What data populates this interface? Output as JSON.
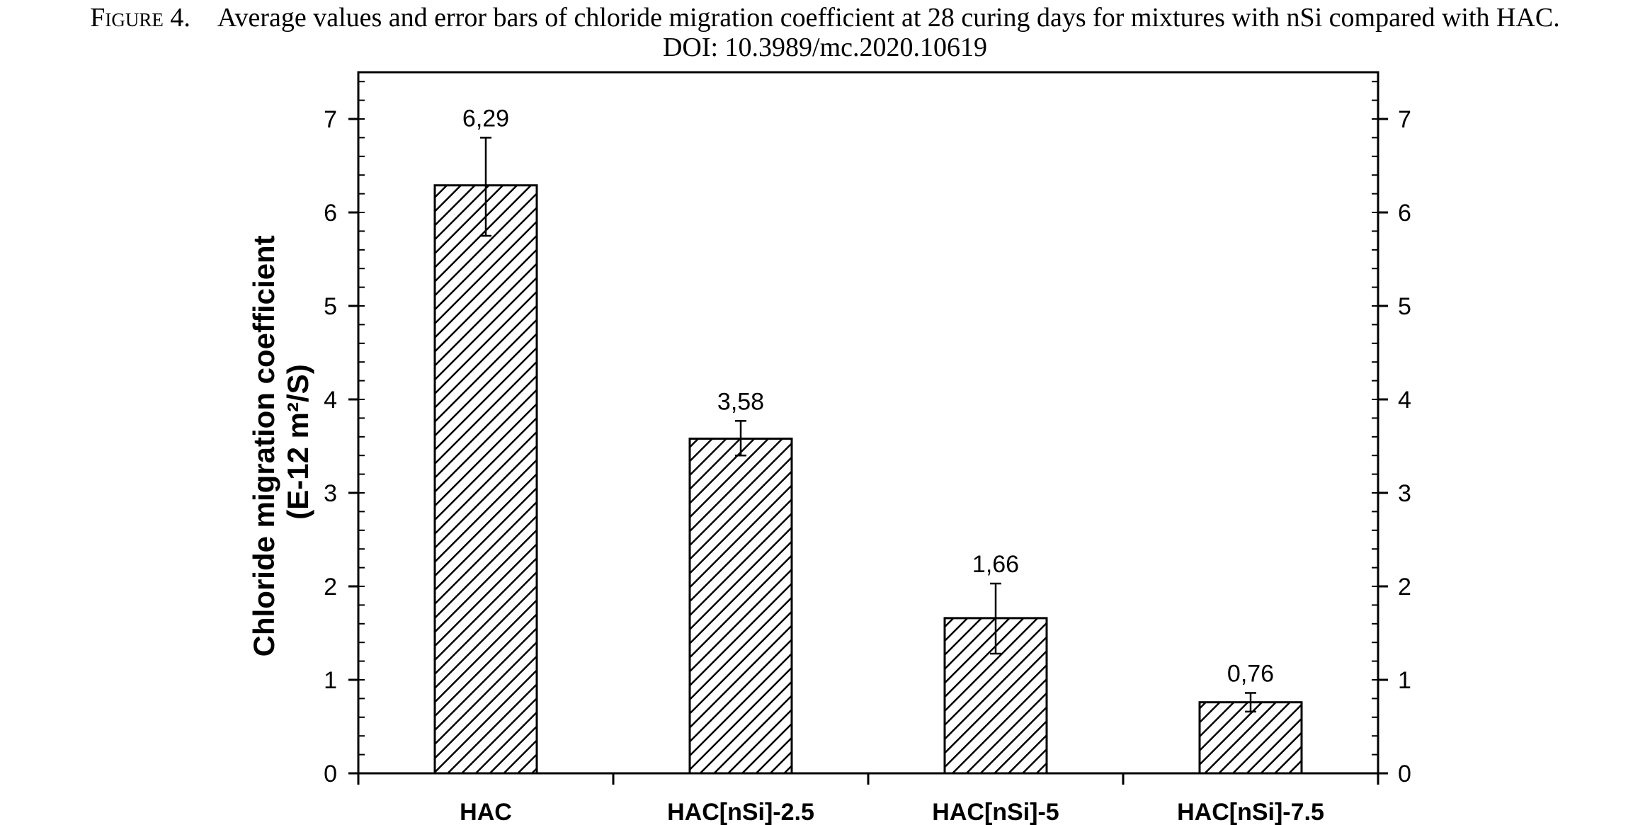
{
  "caption": {
    "label": "Figure 4.",
    "text": "Average values and error bars of chloride migration coefficient at 28 curing days for mixtures with nSi compared with HAC.",
    "doi": "DOI: 10.3989/mc.2020.10619"
  },
  "chart_data": {
    "type": "bar",
    "title": "",
    "xlabel": "",
    "ylabel_line1": "Chloride migration coefficient",
    "ylabel_line2": "(E-12 m²/S)",
    "categories": [
      "HAC",
      "HAC[nSi]-2.5",
      "HAC[nSi]-5",
      "HAC[nSi]-7.5"
    ],
    "values": [
      6.29,
      3.58,
      1.66,
      0.76
    ],
    "value_labels": [
      "6,29",
      "3,58",
      "1,66",
      "0,76"
    ],
    "error_bars": [
      {
        "low": 5.75,
        "high": 6.8
      },
      {
        "low": 3.4,
        "high": 3.77
      },
      {
        "low": 1.28,
        "high": 2.03
      },
      {
        "low": 0.66,
        "high": 0.86
      }
    ],
    "ylim": [
      0,
      7.5
    ],
    "y_ticks": [
      0,
      1,
      2,
      3,
      4,
      5,
      6,
      7
    ],
    "y_minor_step": 0.2,
    "secondary_y_axis": true,
    "bar_fill": "diagonal-hatch",
    "bar_color": "#ffffff",
    "hatch_color": "#000000",
    "grid": false,
    "legend": "none"
  }
}
